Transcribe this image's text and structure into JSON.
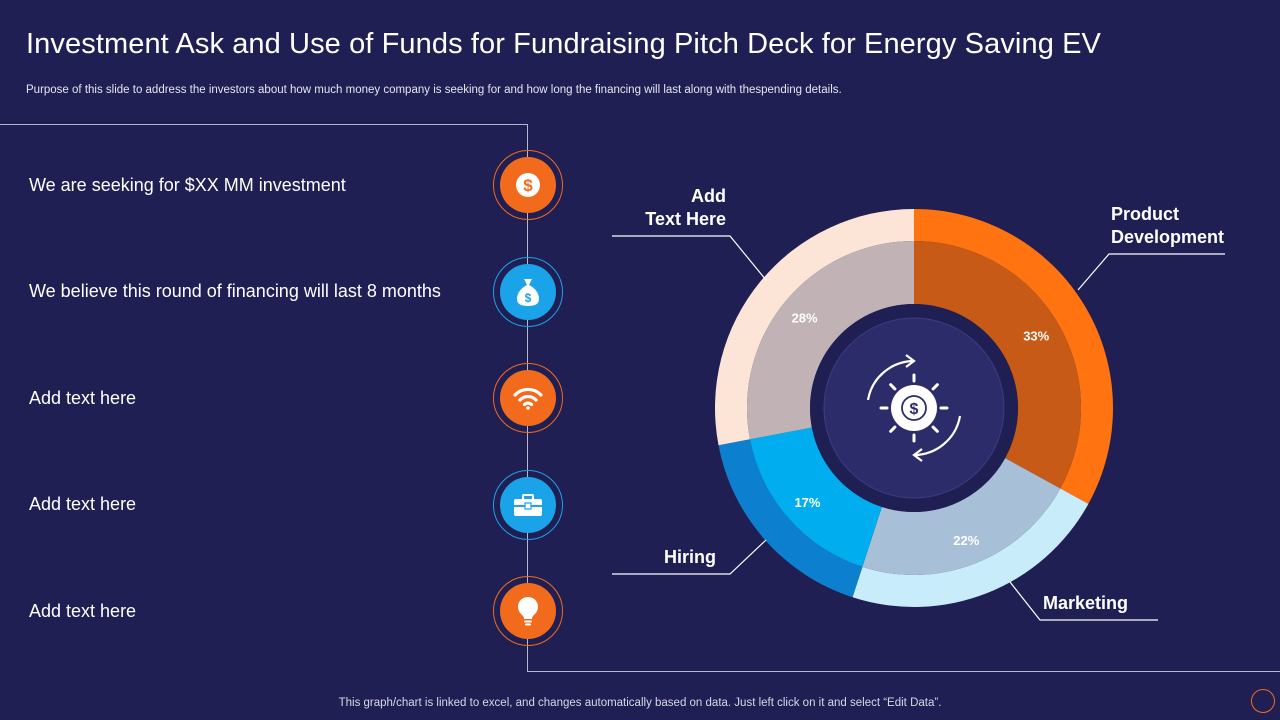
{
  "header": {
    "title": "Investment Ask and Use of Funds for Fundraising Pitch Deck for Energy Saving EV",
    "subtitle": "Purpose of this slide to address the investors about how much money company is seeking for and how long the financing will last along with thespending details."
  },
  "items": [
    {
      "text": "We are seeking for $XX MM investment",
      "icon": "dollar-coin-icon",
      "accent": "orange"
    },
    {
      "text": "We believe this round of financing will last 8 months",
      "icon": "money-bag-icon",
      "accent": "blue"
    },
    {
      "text": "Add text here",
      "icon": "wifi-icon",
      "accent": "orange"
    },
    {
      "text": "Add text here",
      "icon": "toolbox-icon",
      "accent": "blue"
    },
    {
      "text": "Add text here",
      "icon": "lightbulb-icon",
      "accent": "orange"
    }
  ],
  "colors": {
    "background": "#201f53",
    "orange": "#f26a1b",
    "blue": "#1aa3e8"
  },
  "chart_data": {
    "type": "pie",
    "subtype": "donut",
    "title": "",
    "series": [
      {
        "name": "Product Development",
        "value": 33,
        "label": "33%",
        "outer_color": "#ff7410",
        "inner_color": "#c75a17"
      },
      {
        "name": "Marketing",
        "value": 22,
        "label": "22%",
        "outer_color": "#c9ecfb",
        "inner_color": "#a7bfd7"
      },
      {
        "name": "Hiring",
        "value": 17,
        "label": "17%",
        "outer_color": "#0d7fcf",
        "inner_color": "#00aeef"
      },
      {
        "name": "Add Text Here",
        "value": 28,
        "label": "28%",
        "outer_color": "#fce4d6",
        "inner_color": "#c1b3b5"
      }
    ],
    "callouts": [
      "Product Development",
      "Marketing",
      "Hiring",
      "Add Text Here"
    ],
    "center_icon": "dollar-gear-icon"
  },
  "footer": {
    "note": "This graph/chart is linked to excel,  and changes automatically based on data. Just left click on it and select “Edit Data”."
  }
}
